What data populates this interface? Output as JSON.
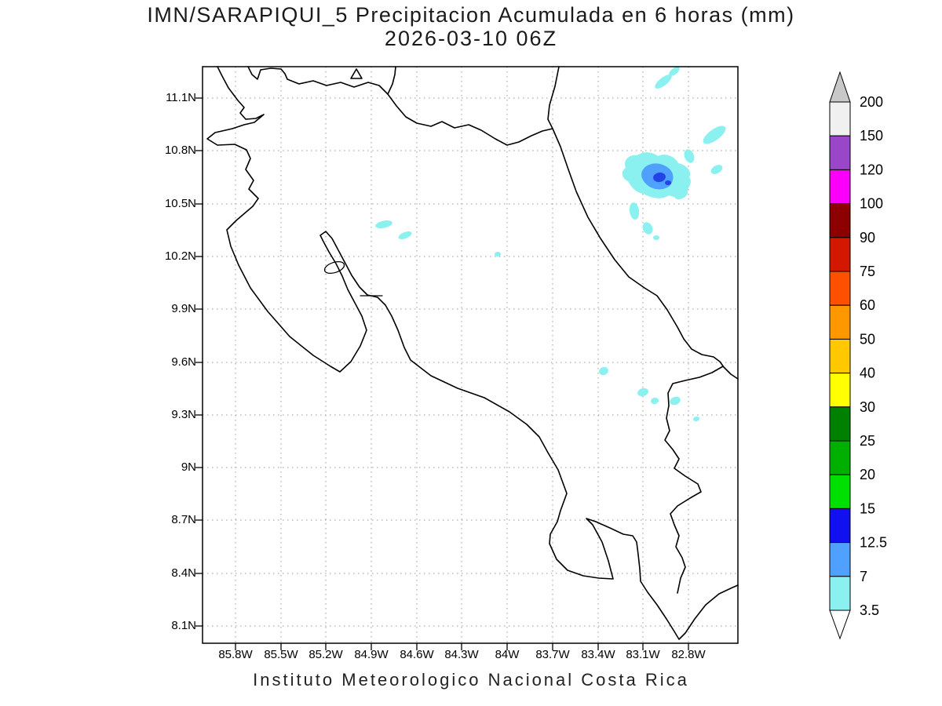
{
  "title": {
    "line1": "IMN/SARAPIQUI_5 Precipitacion Acumulada en 6 horas (mm)",
    "line2": "2026-03-10 06Z"
  },
  "footer": "Instituto Meteorologico Nacional Costa Rica",
  "axes": {
    "lat_labels": [
      "11.1N",
      "10.8N",
      "10.5N",
      "10.2N",
      "9.9N",
      "9.6N",
      "9.3N",
      "9N",
      "8.7N",
      "8.4N",
      "8.1N"
    ],
    "lon_labels": [
      "85.8W",
      "85.5W",
      "85.2W",
      "84.9W",
      "84.6W",
      "84.3W",
      "84W",
      "83.7W",
      "83.4W",
      "83.1W",
      "82.8W"
    ]
  },
  "colorbar": {
    "labels": [
      "200",
      "150",
      "120",
      "100",
      "90",
      "75",
      "60",
      "50",
      "40",
      "30",
      "25",
      "20",
      "15",
      "12.5",
      "7",
      "3.5"
    ],
    "segment_colors": [
      "#f0f0f0",
      "#9a46c8",
      "#fa00fa",
      "#8c0000",
      "#d41800",
      "#ff5000",
      "#ff9800",
      "#ffc800",
      "#ffff00",
      "#008000",
      "#00b000",
      "#00e000",
      "#1010f0",
      "#50a0ff",
      "#8af0f0"
    ],
    "over_color": "#c8c8c8",
    "under_color": "#ffffff",
    "units": "mm"
  },
  "map": {
    "region": "Costa Rica",
    "precip_colors": {
      "light": "#8af0f0",
      "moderate": "#50a0ff",
      "heavy": "#2244e4"
    },
    "precipitation_summary": [
      {
        "area": "northeast Caribbean slope (approx 10.5-10.8N, 83.0-83.3W)",
        "intensity_mm": "3.5-20"
      },
      {
        "area": "scattered cells near 10.2-10.4N, 84.7-84.9W",
        "intensity_mm": "3.5-7"
      },
      {
        "area": "scattered cells near 9.2-9.4N, 82.8-83.1W",
        "intensity_mm": "3.5-7"
      }
    ]
  }
}
